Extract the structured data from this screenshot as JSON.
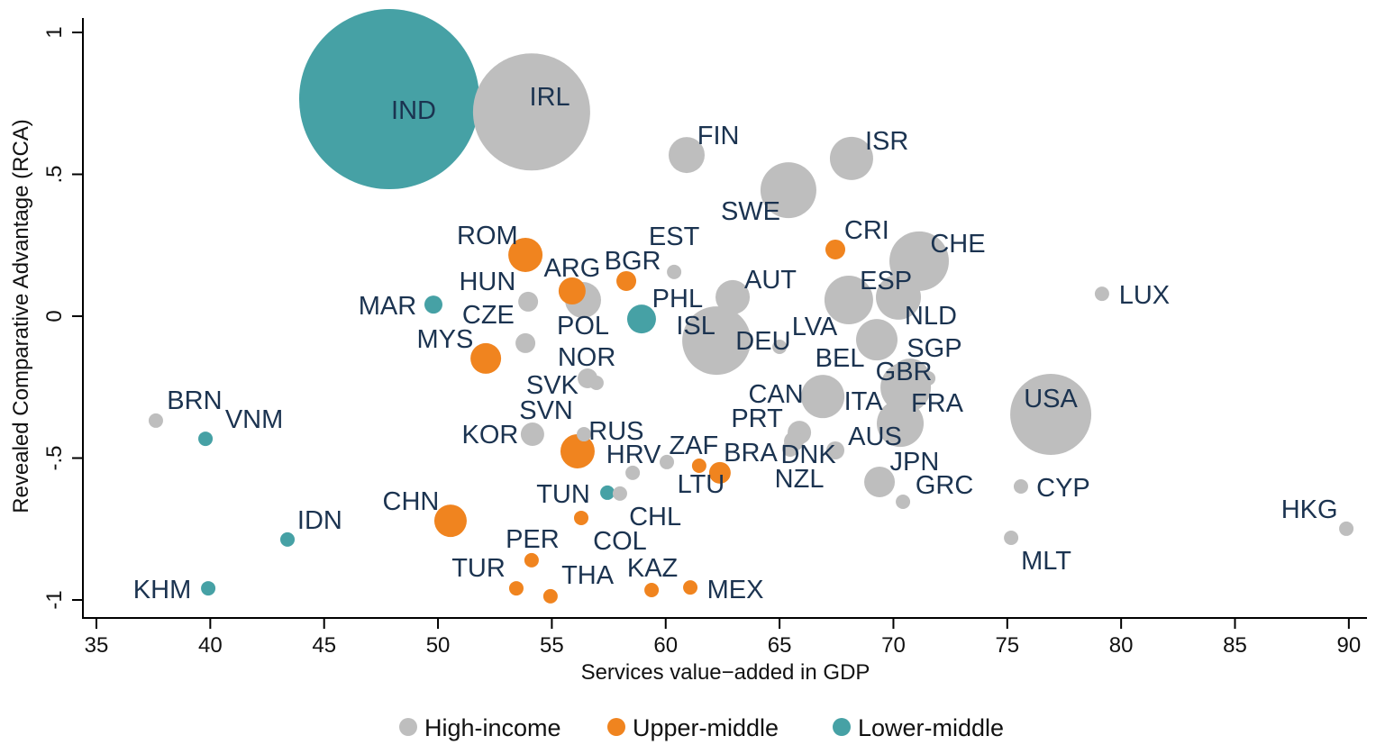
{
  "chart_data": {
    "type": "scatter",
    "subtype": "bubble",
    "xlabel": "Services value−added in GDP",
    "ylabel": "Revealed Comparative Advantage (RCA)",
    "xlim": [
      35,
      90
    ],
    "ylim": [
      -1,
      1
    ],
    "xticks": [
      35,
      40,
      45,
      50,
      55,
      60,
      65,
      70,
      75,
      80,
      85,
      90
    ],
    "xtick_labels": [
      "35",
      "40",
      "45",
      "50",
      "55",
      "60",
      "65",
      "70",
      "75",
      "80",
      "85",
      "90"
    ],
    "yticks": [
      1,
      0.5,
      0,
      -0.5,
      -1
    ],
    "ytick_labels": [
      "1",
      ".5",
      "0",
      "-.5",
      "-1"
    ],
    "grid": false,
    "legend_position": "bottom",
    "groups": [
      {
        "key": "high",
        "name": "High-income",
        "color": "#bebebe"
      },
      {
        "key": "upper",
        "name": "Upper-middle",
        "color": "#f0841f"
      },
      {
        "key": "lower",
        "name": "Lower-middle",
        "color": "#46a1a5"
      }
    ],
    "label_color": "#1b3350",
    "points": [
      {
        "label": "IND",
        "group": "lower",
        "x": 47.86,
        "y": 0.765,
        "size": 100,
        "lx": 48.93,
        "ly": 0.727
      },
      {
        "label": "IRL",
        "group": "high",
        "x": 54.11,
        "y": 0.72,
        "size": 42.25,
        "lx": 54.91,
        "ly": 0.775
      },
      {
        "label": "DEU",
        "group": "high",
        "x": 62.23,
        "y": -0.086,
        "size": 14.44,
        "lx": 64.28,
        "ly": -0.086
      },
      {
        "label": "USA",
        "group": "high",
        "x": 76.91,
        "y": -0.346,
        "size": 20.25,
        "lx": 76.91,
        "ly": -0.289
      },
      {
        "label": "CHE",
        "group": "high",
        "x": 71.13,
        "y": 0.194,
        "size": 10.89,
        "lx": 72.83,
        "ly": 0.257
      },
      {
        "label": "SWE",
        "group": "high",
        "x": 65.39,
        "y": 0.444,
        "size": 9.61,
        "lx": 63.73,
        "ly": 0.371
      },
      {
        "label": "FRA",
        "group": "high",
        "x": 70.54,
        "y": -0.251,
        "size": 7.84,
        "lx": 71.92,
        "ly": -0.305
      },
      {
        "label": "ESP",
        "group": "high",
        "x": 68.04,
        "y": 0.057,
        "size": 7.29,
        "lx": 69.67,
        "ly": 0.127
      },
      {
        "label": "ITA",
        "group": "high",
        "x": 70.3,
        "y": -0.378,
        "size": 6.76,
        "lx": 68.68,
        "ly": -0.298
      },
      {
        "label": "NLD",
        "group": "high",
        "x": 70.22,
        "y": 0.067,
        "size": 6.25,
        "lx": 71.64,
        "ly": 0.003
      },
      {
        "label": "ISR",
        "group": "high",
        "x": 68.16,
        "y": 0.556,
        "size": 5.76,
        "lx": 69.71,
        "ly": 0.619
      },
      {
        "label": "CAN",
        "group": "high",
        "x": 66.9,
        "y": -0.283,
        "size": 5.76,
        "lx": 64.84,
        "ly": -0.273
      },
      {
        "label": "BEL",
        "group": "high",
        "x": 69.27,
        "y": -0.083,
        "size": 5.29,
        "lx": 67.65,
        "ly": -0.146
      },
      {
        "label": "GBR",
        "group": "high",
        "x": 70.73,
        "y": -0.219,
        "size": 4.84,
        "lx": 70.46,
        "ly": -0.194
      },
      {
        "label": "FIN",
        "group": "high",
        "x": 60.92,
        "y": 0.568,
        "size": 4.0,
        "lx": 62.31,
        "ly": 0.638
      },
      {
        "label": "POL",
        "group": "high",
        "x": 56.37,
        "y": 0.057,
        "size": 4.0,
        "lx": 56.37,
        "ly": -0.032
      },
      {
        "label": "AUT",
        "group": "high",
        "x": 62.94,
        "y": 0.067,
        "size": 3.61,
        "lx": 64.6,
        "ly": 0.13
      },
      {
        "label": "ROM",
        "group": "upper",
        "x": 53.84,
        "y": 0.216,
        "size": 3.61,
        "lx": 52.17,
        "ly": 0.286
      },
      {
        "label": "RUS",
        "group": "upper",
        "x": 56.13,
        "y": -0.476,
        "size": 3.61,
        "lx": 57.83,
        "ly": -0.403
      },
      {
        "label": "CHN",
        "group": "upper",
        "x": 50.55,
        "y": -0.721,
        "size": 3.24,
        "lx": 48.81,
        "ly": -0.651
      },
      {
        "label": "MYS",
        "group": "upper",
        "x": 52.1,
        "y": -0.149,
        "size": 2.89,
        "lx": 50.31,
        "ly": -0.079
      },
      {
        "label": "JPN",
        "group": "high",
        "x": 69.39,
        "y": -0.584,
        "size": 2.89,
        "lx": 70.93,
        "ly": -0.511
      },
      {
        "label": "PHL",
        "group": "lower",
        "x": 58.94,
        "y": -0.01,
        "size": 2.56,
        "lx": 60.52,
        "ly": 0.063
      },
      {
        "label": "ARG",
        "group": "upper",
        "x": 55.89,
        "y": 0.089,
        "size": 2.25,
        "lx": 55.89,
        "ly": 0.171
      },
      {
        "label": "KOR",
        "group": "high",
        "x": 54.15,
        "y": -0.416,
        "size": 1.69,
        "lx": 52.29,
        "ly": -0.416
      },
      {
        "label": "PRT",
        "group": "high",
        "x": 65.87,
        "y": -0.41,
        "size": 1.69,
        "lx": 64.01,
        "ly": -0.359
      },
      {
        "label": "BRA",
        "group": "upper",
        "x": 62.38,
        "y": -0.552,
        "size": 1.44,
        "lx": 63.73,
        "ly": -0.479
      },
      {
        "label": "CRI",
        "group": "upper",
        "x": 67.45,
        "y": 0.235,
        "size": 1.21,
        "lx": 68.83,
        "ly": 0.305
      },
      {
        "label": "BGR",
        "group": "upper",
        "x": 58.27,
        "y": 0.124,
        "size": 1.21,
        "lx": 58.31,
        "ly": 0.197
      },
      {
        "label": "HUN",
        "group": "high",
        "x": 53.96,
        "y": 0.051,
        "size": 1.21,
        "lx": 52.17,
        "ly": 0.124
      },
      {
        "label": "CZE",
        "group": "high",
        "x": 53.84,
        "y": -0.095,
        "size": 1.21,
        "lx": 52.21,
        "ly": -0.019
      },
      {
        "label": "SVK",
        "group": "high",
        "x": 56.57,
        "y": -0.219,
        "size": 1.21,
        "lx": 55.02,
        "ly": -0.241
      },
      {
        "label": "DNK",
        "group": "high",
        "x": 65.63,
        "y": -0.441,
        "size": 1.21,
        "lx": 65.79,
        "ly": -0.486
      },
      {
        "label": "MAR",
        "group": "lower",
        "x": 49.8,
        "y": 0.041,
        "size": 1.0,
        "lx": 47.78,
        "ly": 0.038
      },
      {
        "label": "AUS",
        "group": "high",
        "x": 67.45,
        "y": -0.473,
        "size": 1.0,
        "lx": 69.19,
        "ly": -0.473
      },
      {
        "label": "NZL",
        "group": "high",
        "x": 65.47,
        "y": -0.467,
        "size": 0.81,
        "lx": 65.87,
        "ly": -0.521
      },
      {
        "label": "LUX",
        "group": "high",
        "x": 79.16,
        "y": 0.079,
        "size": 0.64,
        "lx": 81.02,
        "ly": 0.076
      },
      {
        "label": "EST",
        "group": "high",
        "x": 60.37,
        "y": 0.156,
        "size": 0.64,
        "lx": 60.37,
        "ly": 0.232
      },
      {
        "label": "LVA",
        "group": "high",
        "x": 65.0,
        "y": -0.108,
        "size": 0.64,
        "lx": 66.54,
        "ly": -0.035
      },
      {
        "label": "ISL",
        "group": "high",
        "x": 62.4,
        "y": -0.06,
        "size": 0.36,
        "lx": 61.32,
        "ly": -0.032
      },
      {
        "label": "NOR",
        "group": "high",
        "x": 56.96,
        "y": -0.235,
        "size": 0.64,
        "lx": 56.53,
        "ly": -0.143
      },
      {
        "label": "SGP",
        "group": "high",
        "x": 71.53,
        "y": -0.219,
        "size": 0.64,
        "lx": 71.8,
        "ly": -0.187
      },
      {
        "label": "BRN",
        "group": "high",
        "x": 37.61,
        "y": -0.368,
        "size": 0.64,
        "lx": 39.31,
        "ly": -0.295
      },
      {
        "label": "VNM",
        "group": "lower",
        "x": 39.79,
        "y": -0.432,
        "size": 0.64,
        "lx": 41.69,
        "ly": -0.362
      },
      {
        "label": "SVN",
        "group": "high",
        "x": 56.41,
        "y": -0.416,
        "size": 0.64,
        "lx": 54.75,
        "ly": -0.343
      },
      {
        "label": "HRV",
        "group": "high",
        "x": 58.55,
        "y": -0.552,
        "size": 0.64,
        "lx": 58.59,
        "ly": -0.473
      },
      {
        "label": "LTU",
        "group": "high",
        "x": 60.05,
        "y": -0.514,
        "size": 0.64,
        "lx": 61.55,
        "ly": -0.59
      },
      {
        "label": "ZAF",
        "group": "upper",
        "x": 61.47,
        "y": -0.527,
        "size": 0.64,
        "lx": 61.47,
        "ly": -0.454
      },
      {
        "label": "GRC",
        "group": "high",
        "x": 70.42,
        "y": -0.654,
        "size": 0.64,
        "lx": 72.24,
        "ly": -0.581
      },
      {
        "label": "CYP",
        "group": "high",
        "x": 75.6,
        "y": -0.6,
        "size": 0.64,
        "lx": 77.46,
        "ly": -0.603
      },
      {
        "label": "MLT",
        "group": "high",
        "x": 75.17,
        "y": -0.781,
        "size": 0.64,
        "lx": 76.71,
        "ly": -0.86
      },
      {
        "label": "HKG",
        "group": "high",
        "x": 89.89,
        "y": -0.749,
        "size": 0.64,
        "lx": 88.27,
        "ly": -0.679
      },
      {
        "label": "TUN",
        "group": "lower",
        "x": 57.44,
        "y": -0.622,
        "size": 0.64,
        "lx": 55.5,
        "ly": -0.625
      },
      {
        "label": "CHL",
        "group": "high",
        "x": 57.99,
        "y": -0.625,
        "size": 0.64,
        "lx": 59.54,
        "ly": -0.705
      },
      {
        "label": "COL",
        "group": "upper",
        "x": 56.29,
        "y": -0.711,
        "size": 0.64,
        "lx": 57.99,
        "ly": -0.79
      },
      {
        "label": "IDN",
        "group": "lower",
        "x": 43.39,
        "y": -0.787,
        "size": 0.64,
        "lx": 44.81,
        "ly": -0.717
      },
      {
        "label": "PER",
        "group": "upper",
        "x": 54.11,
        "y": -0.86,
        "size": 0.64,
        "lx": 54.15,
        "ly": -0.784
      },
      {
        "label": "TUR",
        "group": "upper",
        "x": 53.44,
        "y": -0.959,
        "size": 0.64,
        "lx": 51.78,
        "ly": -0.886
      },
      {
        "label": "THA",
        "group": "upper",
        "x": 54.94,
        "y": -0.987,
        "size": 0.64,
        "lx": 56.57,
        "ly": -0.911
      },
      {
        "label": "KAZ",
        "group": "upper",
        "x": 59.38,
        "y": -0.965,
        "size": 0.64,
        "lx": 59.42,
        "ly": -0.886
      },
      {
        "label": "MEX",
        "group": "upper",
        "x": 61.08,
        "y": -0.956,
        "size": 0.64,
        "lx": 63.06,
        "ly": -0.962
      },
      {
        "label": "KHM",
        "group": "lower",
        "x": 39.91,
        "y": -0.959,
        "size": 0.64,
        "lx": 37.89,
        "ly": -0.962
      }
    ]
  }
}
